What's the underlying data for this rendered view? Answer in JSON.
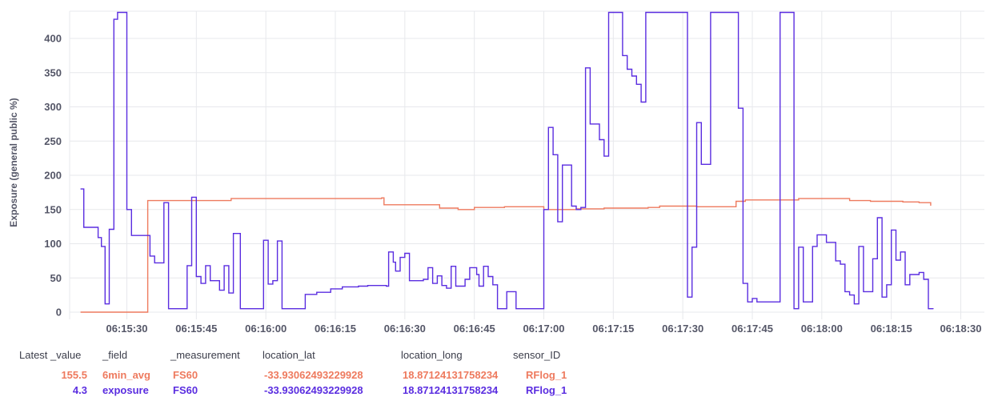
{
  "colors": {
    "avg": "#ee7a5e",
    "exposure": "#5a2de0",
    "grid": "#e7e8ec",
    "text": "#545667"
  },
  "chart_data": {
    "type": "line",
    "interpolation": "step-after",
    "ylabel": "Exposure (general public %)",
    "xlabel": "",
    "ylim": [
      0,
      438
    ],
    "xlim": [
      "06:15:20",
      "06:18:30"
    ],
    "grid": true,
    "y_ticks": [
      0,
      50,
      100,
      150,
      200,
      250,
      300,
      350,
      400
    ],
    "x_tick_labels": [
      "06:15:30",
      "06:15:45",
      "06:16:00",
      "06:16:15",
      "06:16:30",
      "06:16:45",
      "06:17:00",
      "06:17:15",
      "06:17:30",
      "06:17:45",
      "06:18:00",
      "06:18:15",
      "06:18:30"
    ],
    "series": [
      {
        "name": "6min_avg",
        "points": [
          [
            "06:15:20",
            0
          ],
          [
            "06:15:34.5",
            163
          ],
          [
            "06:15:52.5",
            166
          ],
          [
            "06:16:45.0",
            153
          ],
          [
            "06:16:51.5",
            154
          ],
          [
            "06:16:25.0",
            167
          ],
          [
            "06:16:25.5",
            157
          ],
          [
            "06:16:37.5",
            152
          ],
          [
            "06:16:41.5",
            150
          ],
          [
            "06:17:00.0",
            150
          ],
          [
            "06:17:07.0",
            151
          ],
          [
            "06:17:13.0",
            152
          ],
          [
            "06:17:22.5",
            153
          ],
          [
            "06:17:25.0",
            155
          ],
          [
            "06:17:33.0",
            154
          ],
          [
            "06:17:41.5",
            162
          ],
          [
            "06:17:43.5",
            164
          ],
          [
            "06:17:55.0",
            166
          ],
          [
            "06:18:06.0",
            163
          ],
          [
            "06:18:10.5",
            162
          ],
          [
            "06:18:17.5",
            161
          ],
          [
            "06:18:21.0",
            160
          ],
          [
            "06:18:23.5",
            155.5
          ]
        ]
      },
      {
        "name": "exposure",
        "points": [
          [
            "06:15:20",
            180
          ],
          [
            "06:15:20.7",
            124
          ],
          [
            "06:15:23.8",
            109
          ],
          [
            "06:15:24.5",
            96
          ],
          [
            "06:15:25.3",
            12
          ],
          [
            "06:15:26.2",
            121
          ],
          [
            "06:15:27.2",
            428
          ],
          [
            "06:15:28",
            438
          ],
          [
            "06:15:30",
            150
          ],
          [
            "06:15:31",
            112
          ],
          [
            "06:15:35",
            82
          ],
          [
            "06:15:36",
            72
          ],
          [
            "06:15:38",
            160
          ],
          [
            "06:15:39",
            5
          ],
          [
            "06:15:43",
            68
          ],
          [
            "06:15:44",
            168
          ],
          [
            "06:15:45",
            52
          ],
          [
            "06:15:46",
            42
          ],
          [
            "06:15:47",
            68
          ],
          [
            "06:15:48",
            46
          ],
          [
            "06:15:50",
            32
          ],
          [
            "06:15:51",
            68
          ],
          [
            "06:15:52",
            28
          ],
          [
            "06:15:53",
            115
          ],
          [
            "06:15:54.5",
            5
          ],
          [
            "06:15:59.5",
            105
          ],
          [
            "06:16:00.5",
            41
          ],
          [
            "06:16:01.5",
            46
          ],
          [
            "06:16:02.5",
            104
          ],
          [
            "06:16:03.5",
            5
          ],
          [
            "06:16:08.5",
            26
          ],
          [
            "06:16:11",
            29
          ],
          [
            "06:16:14",
            34
          ],
          [
            "06:16:16.5",
            37
          ],
          [
            "06:16:20",
            38
          ],
          [
            "06:16:22",
            39
          ],
          [
            "06:16:26",
            38
          ],
          [
            "06:16:26.5",
            88
          ],
          [
            "06:16:27.5",
            73
          ],
          [
            "06:16:28",
            60
          ],
          [
            "06:16:29",
            80
          ],
          [
            "06:16:30",
            86
          ],
          [
            "06:16:31",
            46
          ],
          [
            "06:16:34",
            48
          ],
          [
            "06:16:35",
            65
          ],
          [
            "06:16:36",
            42
          ],
          [
            "06:16:37",
            53
          ],
          [
            "06:16:38",
            39
          ],
          [
            "06:16:39",
            35
          ],
          [
            "06:16:40",
            67
          ],
          [
            "06:16:41",
            38
          ],
          [
            "06:16:43",
            48
          ],
          [
            "06:16:44",
            65
          ],
          [
            "06:16:45.5",
            55
          ],
          [
            "06:16:46",
            38
          ],
          [
            "06:16:47",
            67
          ],
          [
            "06:16:48",
            52
          ],
          [
            "06:16:49",
            40
          ],
          [
            "06:16:50",
            5
          ],
          [
            "06:16:52",
            30
          ],
          [
            "06:16:54",
            5
          ],
          [
            "06:17:00",
            150
          ],
          [
            "06:17:01",
            270
          ],
          [
            "06:17:02",
            230
          ],
          [
            "06:17:03",
            132
          ],
          [
            "06:17:04",
            215
          ],
          [
            "06:17:06",
            155
          ],
          [
            "06:17:07",
            150
          ],
          [
            "06:17:08",
            153
          ],
          [
            "06:17:09",
            357
          ],
          [
            "06:17:10",
            275
          ],
          [
            "06:17:12",
            252
          ],
          [
            "06:17:13",
            228
          ],
          [
            "06:17:14",
            438
          ],
          [
            "06:17:17",
            375
          ],
          [
            "06:17:18",
            355
          ],
          [
            "06:17:19",
            345
          ],
          [
            "06:17:20",
            333
          ],
          [
            "06:17:21",
            307
          ],
          [
            "06:17:22",
            438
          ],
          [
            "06:17:31",
            22
          ],
          [
            "06:17:32",
            95
          ],
          [
            "06:17:33",
            277
          ],
          [
            "06:17:34",
            216
          ],
          [
            "06:17:36",
            438
          ],
          [
            "06:17:42",
            298
          ],
          [
            "06:17:43",
            42
          ],
          [
            "06:17:44",
            15
          ],
          [
            "06:17:45",
            20
          ],
          [
            "06:17:46",
            15
          ],
          [
            "06:17:51",
            438
          ],
          [
            "06:17:54",
            5
          ],
          [
            "06:17:55",
            95
          ],
          [
            "06:17:56",
            15
          ],
          [
            "06:17:58",
            96
          ],
          [
            "06:17:59",
            113
          ],
          [
            "06:18:01",
            102
          ],
          [
            "06:18:03",
            75
          ],
          [
            "06:18:04",
            70
          ],
          [
            "06:18:05",
            30
          ],
          [
            "06:18:06",
            25
          ],
          [
            "06:18:07",
            12
          ],
          [
            "06:18:08",
            96
          ],
          [
            "06:18:09",
            30
          ],
          [
            "06:18:11",
            78
          ],
          [
            "06:18:12",
            138
          ],
          [
            "06:18:13",
            22
          ],
          [
            "06:18:14",
            40
          ],
          [
            "06:18:15",
            120
          ],
          [
            "06:18:16",
            76
          ],
          [
            "06:18:17",
            88
          ],
          [
            "06:18:18",
            40
          ],
          [
            "06:18:19",
            55
          ],
          [
            "06:18:21",
            58
          ],
          [
            "06:18:22",
            48
          ],
          [
            "06:18:23",
            5
          ],
          [
            "06:18:24",
            4.3
          ]
        ]
      }
    ]
  },
  "legend": {
    "headers": [
      "Latest _value",
      "_field",
      "_measurement",
      "location_lat",
      "location_long",
      "sensor_ID"
    ],
    "rows": [
      {
        "series": "avg",
        "value": "155.5",
        "field": "6min_avg",
        "measurement": "FS60",
        "lat": "-33.93062493229928",
        "long": "18.87124131758234",
        "sensor": "RFlog_1"
      },
      {
        "series": "exposure",
        "value": "4.3",
        "field": "exposure",
        "measurement": "FS60",
        "lat": "-33.93062493229928",
        "long": "18.87124131758234",
        "sensor": "RFlog_1"
      }
    ]
  }
}
